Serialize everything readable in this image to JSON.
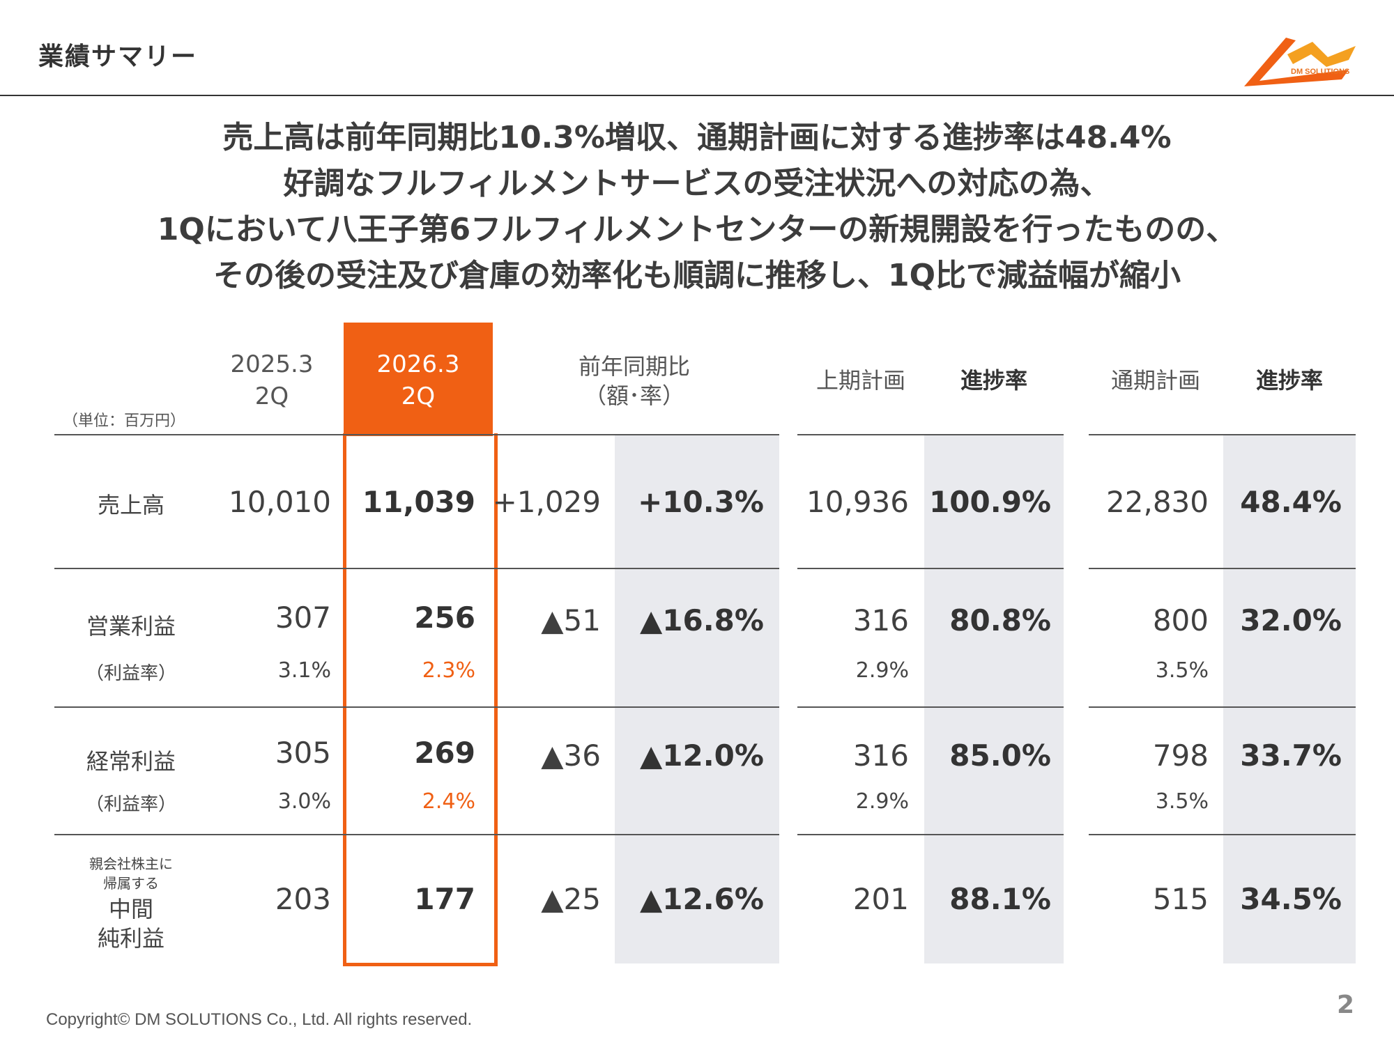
{
  "header": {
    "title": "業績サマリー",
    "logo_text": "DM SOLUTIONS"
  },
  "headline": {
    "lines": [
      "売上高は前年同期比10.3%増収、通期計画に対する進捗率は48.4%",
      "好調なフルフィルメントサービスの受注状況への対応の為、",
      "1Qにおいて八王子第6フルフィルメントセンターの新規開設を行ったものの、",
      "その後の受注及び倉庫の効率化も順調に推移し、1Q比で減益幅が縮小"
    ]
  },
  "table": {
    "unit_label": "（単位：百万円）",
    "columns": {
      "prev": {
        "line1": "2025.3",
        "line2": "2Q"
      },
      "curr": {
        "line1": "2026.3",
        "line2": "2Q"
      },
      "yoy": {
        "line1": "前年同期比",
        "line2": "（額･率）"
      },
      "h1_plan": "上期計画",
      "h1_progress": "進捗率",
      "fy_plan": "通期計画",
      "fy_progress": "進捗率"
    },
    "rows": [
      {
        "label": "売上高",
        "prev": "10,010",
        "curr": "11,039",
        "yoy_amount": "+1,029",
        "yoy_rate": "+10.3%",
        "h1_plan": "10,936",
        "h1_progress": "100.9%",
        "fy_plan": "22,830",
        "fy_progress": "48.4%"
      },
      {
        "label": "営業利益",
        "sublabel": "（利益率）",
        "prev": "307",
        "prev_margin": "3.1%",
        "curr": "256",
        "curr_margin": "2.3%",
        "yoy_amount": "▲51",
        "yoy_rate": "▲16.8%",
        "h1_plan": "316",
        "h1_margin": "2.9%",
        "h1_progress": "80.8%",
        "fy_plan": "800",
        "fy_margin": "3.5%",
        "fy_progress": "32.0%"
      },
      {
        "label": "経常利益",
        "sublabel": "（利益率）",
        "prev": "305",
        "prev_margin": "3.0%",
        "curr": "269",
        "curr_margin": "2.4%",
        "yoy_amount": "▲36",
        "yoy_rate": "▲12.0%",
        "h1_plan": "316",
        "h1_margin": "2.9%",
        "h1_progress": "85.0%",
        "fy_plan": "798",
        "fy_margin": "3.5%",
        "fy_progress": "33.7%"
      },
      {
        "label_small1": "親会社株主に",
        "label_small2": "帰属する",
        "label_line1": "中間",
        "label_line2": "純利益",
        "prev": "203",
        "curr": "177",
        "yoy_amount": "▲25",
        "yoy_rate": "▲12.6%",
        "h1_plan": "201",
        "h1_progress": "88.1%",
        "fy_plan": "515",
        "fy_progress": "34.5%"
      }
    ]
  },
  "footer": {
    "copyright": "Copyright© DM SOLUTIONS Co., Ltd. All rights reserved.",
    "page_number": "2"
  },
  "colors": {
    "accent": "#f06014",
    "shade": "#e9eaee",
    "text": "#404040"
  }
}
